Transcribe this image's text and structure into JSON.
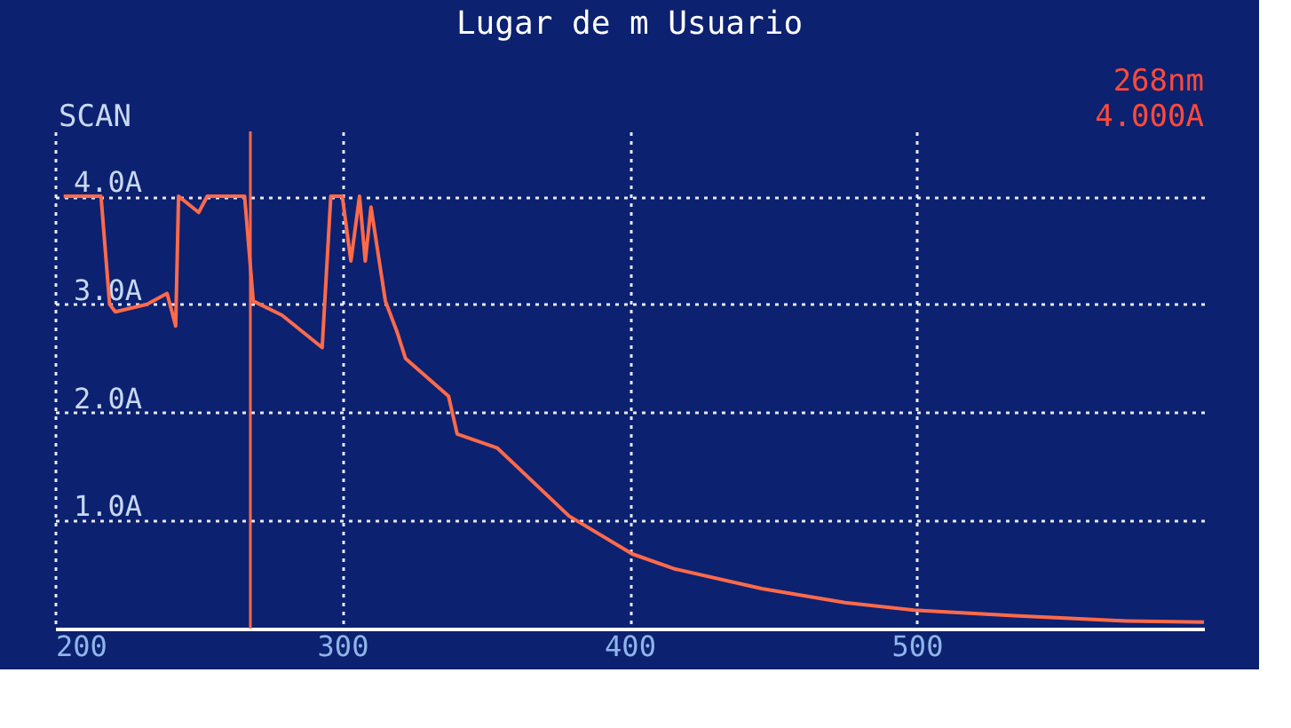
{
  "chart_data": {
    "type": "line",
    "title": "Lugar de m Usuario",
    "annotations": [
      "SCAN",
      "268nm",
      "4.000A"
    ],
    "x": [
      203,
      216,
      219,
      221,
      232,
      239,
      242,
      243,
      250,
      253,
      266,
      269,
      279,
      293,
      296,
      300,
      303,
      306,
      308,
      310,
      315,
      319,
      322,
      337,
      340,
      354,
      379,
      401,
      416,
      446,
      475,
      499,
      534,
      573,
      600
    ],
    "series": [
      {
        "color": "#ff6a4a",
        "values": [
          4.0,
          4.0,
          3.0,
          2.93,
          3.0,
          3.1,
          2.8,
          4.0,
          3.85,
          4.0,
          4.0,
          3.03,
          2.9,
          2.6,
          4.0,
          4.0,
          3.4,
          4.0,
          3.4,
          3.9,
          3.03,
          2.75,
          2.5,
          2.15,
          1.8,
          1.67,
          1.04,
          0.69,
          0.55,
          0.37,
          0.24,
          0.17,
          0.12,
          0.07,
          0.06
        ]
      }
    ],
    "xlim": [
      200,
      600
    ],
    "xticks": [
      200,
      300,
      400,
      500
    ],
    "ylim": [
      0,
      4.6
    ],
    "yticks": [
      {
        "value": 1,
        "label": "1.0A"
      },
      {
        "value": 2,
        "label": "2.0A"
      },
      {
        "value": 3,
        "label": "3.0A"
      },
      {
        "value": 4,
        "label": "4.0A"
      }
    ],
    "ref_lines": [
      {
        "axis": "x",
        "value": 268,
        "color": "#ff6a4a"
      }
    ],
    "grid": true,
    "marker": "none",
    "line_style": "solid"
  }
}
